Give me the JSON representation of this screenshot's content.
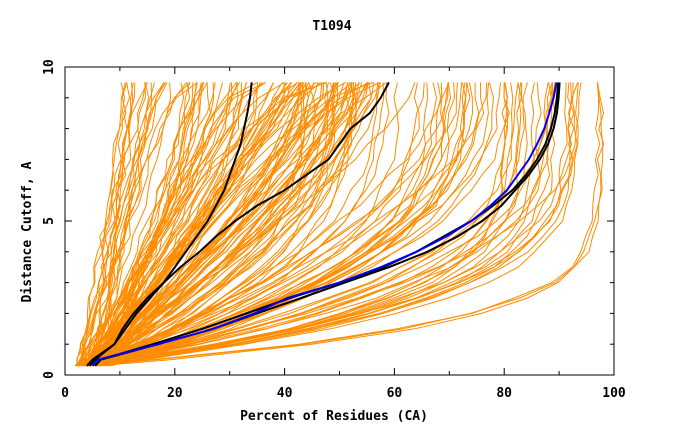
{
  "chart_data": {
    "type": "line",
    "title": "T1094",
    "xlabel": "Percent of Residues (CA)",
    "ylabel": "Distance Cutoff, A",
    "xlim": [
      0,
      100
    ],
    "ylim": [
      0,
      10
    ],
    "x_ticks": [
      0,
      20,
      40,
      60,
      80,
      100
    ],
    "y_ticks": [
      0,
      5,
      10
    ],
    "grid": false,
    "legend": "none",
    "y_levels": [
      0.3,
      0.5,
      1,
      1.5,
      2,
      2.5,
      3,
      3.5,
      4,
      4.5,
      5,
      5.5,
      6,
      6.5,
      7,
      7.5,
      8,
      8.5,
      9,
      9.5
    ],
    "colors": {
      "background_series": "#ff8c00",
      "highlight_black": "#000000",
      "highlight_blue": "#0000ff",
      "frame": "#000000"
    },
    "background_series_count": 180,
    "highlighted_series": [
      {
        "color": "#000000",
        "x": [
          4.0,
          5.0,
          9.0,
          11.0,
          13.0,
          15.5,
          18.0,
          20.0,
          22.0,
          24.0,
          26.0,
          27.5,
          29.0,
          30.0,
          31.0,
          32.0,
          32.6,
          33.2,
          33.7,
          34.0
        ]
      },
      {
        "color": "#000000",
        "x": [
          4.5,
          5.5,
          9.0,
          10.5,
          12.5,
          15.0,
          18.0,
          21.0,
          24.5,
          27.5,
          31.0,
          35.0,
          40.0,
          44.0,
          48.0,
          50.0,
          52.0,
          55.5,
          57.5,
          59.0
        ]
      },
      {
        "color": "#000000",
        "x": [
          5.5,
          6.5,
          16.0,
          25.0,
          33.0,
          41.0,
          50.0,
          58.0,
          64.0,
          69.0,
          74.0,
          78.0,
          81.5,
          84.0,
          86.0,
          87.5,
          88.5,
          89.2,
          89.6,
          89.8
        ]
      },
      {
        "color": "#000000",
        "x": [
          5.5,
          6.5,
          17.0,
          27.0,
          35.0,
          43.0,
          51.0,
          59.0,
          66.0,
          71.5,
          76.0,
          79.5,
          82.0,
          84.5,
          86.5,
          88.0,
          89.0,
          89.6,
          89.9,
          90.1
        ]
      },
      {
        "color": "#0000ff",
        "x": [
          5.0,
          6.0,
          17.0,
          27.0,
          34.5,
          40.5,
          50.0,
          57.5,
          64.0,
          69.5,
          74.0,
          77.5,
          80.5,
          82.5,
          84.5,
          86.0,
          87.3,
          88.2,
          89.0,
          89.5
        ]
      }
    ]
  }
}
